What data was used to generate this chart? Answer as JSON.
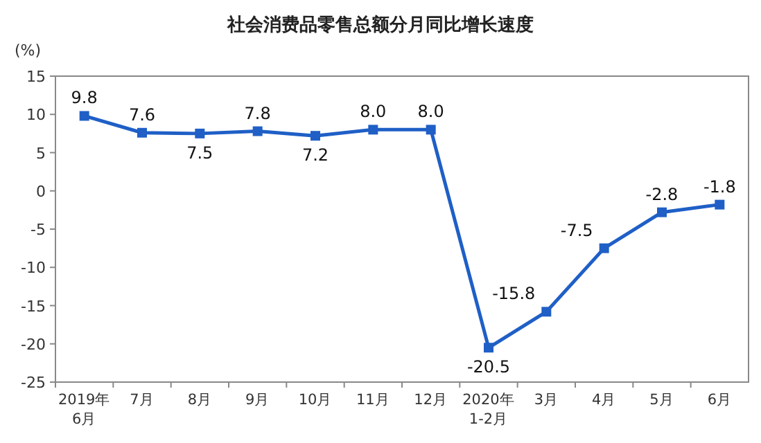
{
  "chart_data": {
    "type": "line",
    "title": "社会消费品零售总额分月同比增长速度",
    "ylabel": "(%)",
    "categories": [
      "2019年\n6月",
      "7月",
      "8月",
      "9月",
      "10月",
      "11月",
      "12月",
      "2020年\n1-2月",
      "3月",
      "4月",
      "5月",
      "6月"
    ],
    "series": [
      {
        "color": "#1f5fc6",
        "values": [
          9.8,
          7.6,
          7.5,
          7.8,
          7.2,
          8.0,
          8.0,
          -20.5,
          -15.8,
          -7.5,
          -2.8,
          -1.8
        ],
        "value_labels": [
          "9.8",
          "7.6",
          "7.5",
          "7.8",
          "7.2",
          "8.0",
          "8.0",
          "-20.5",
          "-15.8",
          "-7.5",
          "-2.8",
          "-1.8"
        ]
      }
    ],
    "ylim": [
      -25,
      15
    ],
    "yticks": [
      -25,
      -20,
      -15,
      -10,
      -5,
      0,
      5,
      10,
      15
    ],
    "grid": false,
    "marker": "square",
    "line_style": "solid"
  }
}
